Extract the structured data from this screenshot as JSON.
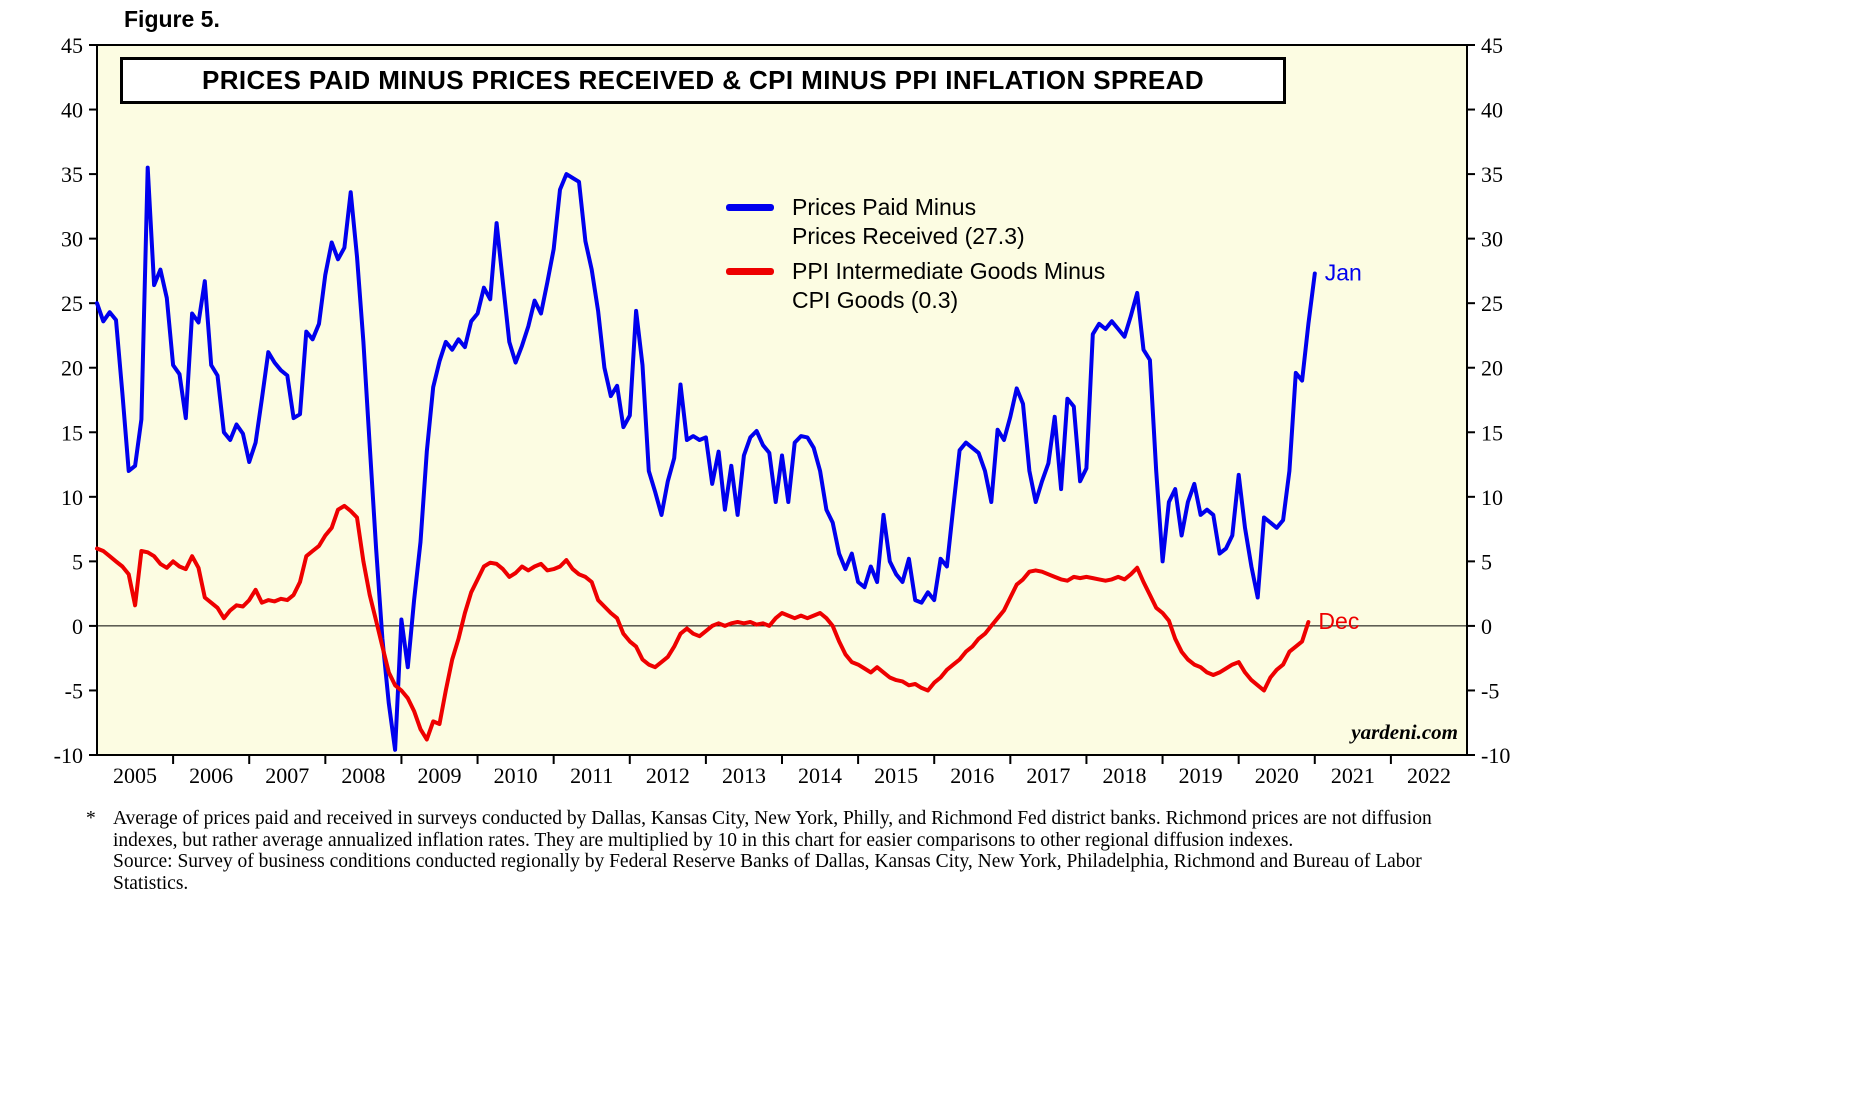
{
  "figure_label": "Figure 5.",
  "header": {
    "title": "PRICES PAID MINUS PRICES RECEIVED & CPI MINUS PPI INFLATION SPREAD"
  },
  "legend": {
    "items": [
      {
        "label_line1": "Prices Paid Minus",
        "label_line2": "Prices Received (27.3)",
        "color": "#0000EE"
      },
      {
        "label_line1": "PPI Intermediate Goods Minus",
        "label_line2": "CPI Goods (0.3)",
        "color": "#EE0000"
      }
    ]
  },
  "watermark": "yardeni.com",
  "footnote": {
    "marker": "*",
    "text": "Average of prices paid and received in surveys conducted by Dallas, Kansas City, New York, Philly, and Richmond Fed district banks. Richmond prices are not diffusion indexes, but rather average annualized inflation rates. They are multiplied by 10 in this chart for easier comparisons to other regional diffusion indexes.",
    "source": "Source: Survey of business conditions conducted regionally by Federal Reserve Banks of Dallas, Kansas City, New York, Philadelphia, Richmond and Bureau of Labor Statistics."
  },
  "chart_data": {
    "type": "line",
    "title": "PRICES PAID MINUS PRICES RECEIVED & CPI MINUS PPI INFLATION SPREAD",
    "xlabel": "",
    "ylabel": "",
    "ylim": [
      -10,
      45
    ],
    "ytick_step": 5,
    "xlim": [
      2005,
      2023
    ],
    "x_unit": "year",
    "x_tick_labels": [
      "2005",
      "2006",
      "2007",
      "2008",
      "2009",
      "2010",
      "2011",
      "2012",
      "2013",
      "2014",
      "2015",
      "2016",
      "2017",
      "2018",
      "2019",
      "2020",
      "2021",
      "2022"
    ],
    "grid": false,
    "zero_line": true,
    "legend_position": "inside-top-center-right",
    "plot_bg": "#FCFCE2",
    "series": [
      {
        "id": "prices-paid-minus-received",
        "name": "Prices Paid Minus Prices Received",
        "color": "#0000EE",
        "x_start": 2005.0,
        "interval": "monthly",
        "end_label": "Jan",
        "last_value": 27.3,
        "values": [
          25.0,
          23.6,
          24.3,
          23.7,
          18.0,
          12.0,
          12.4,
          16.0,
          35.5,
          26.4,
          27.6,
          25.4,
          20.2,
          19.5,
          16.1,
          24.2,
          23.5,
          26.7,
          20.2,
          19.4,
          15.0,
          14.4,
          15.6,
          14.9,
          12.7,
          14.2,
          17.6,
          21.2,
          20.4,
          19.8,
          19.4,
          16.1,
          16.4,
          22.8,
          22.2,
          23.4,
          27.2,
          29.7,
          28.4,
          29.3,
          33.6,
          28.6,
          22.0,
          14.0,
          6.0,
          -1.0,
          -6.0,
          -9.6,
          0.5,
          -3.2,
          2.0,
          6.5,
          13.5,
          18.5,
          20.5,
          22.0,
          21.4,
          22.2,
          21.6,
          23.6,
          24.2,
          26.2,
          25.3,
          31.2,
          26.6,
          22.0,
          20.4,
          21.7,
          23.2,
          25.2,
          24.2,
          26.6,
          29.2,
          33.8,
          35.0,
          34.7,
          34.4,
          29.8,
          27.6,
          24.4,
          20.0,
          17.8,
          18.6,
          15.4,
          16.3,
          24.4,
          20.2,
          12.0,
          10.4,
          8.6,
          11.2,
          13.0,
          18.7,
          14.4,
          14.7,
          14.4,
          14.6,
          11.0,
          13.5,
          9.0,
          12.4,
          8.6,
          13.2,
          14.6,
          15.1,
          14.0,
          13.4,
          9.6,
          13.2,
          9.6,
          14.2,
          14.7,
          14.6,
          13.8,
          12.0,
          9.0,
          8.0,
          5.6,
          4.4,
          5.6,
          3.4,
          3.0,
          4.6,
          3.4,
          8.6,
          5.0,
          4.0,
          3.4,
          5.2,
          2.0,
          1.8,
          2.6,
          2.0,
          5.2,
          4.6,
          9.2,
          13.6,
          14.2,
          13.8,
          13.4,
          12.0,
          9.6,
          15.2,
          14.4,
          16.2,
          18.4,
          17.2,
          12.0,
          9.6,
          11.2,
          12.6,
          16.2,
          10.6,
          17.6,
          17.0,
          11.2,
          12.2,
          22.6,
          23.4,
          23.0,
          23.6,
          23.0,
          22.4,
          24.0,
          25.8,
          21.4,
          20.6,
          12.0,
          5.0,
          9.6,
          10.6,
          7.0,
          9.6,
          11.0,
          8.6,
          9.0,
          8.6,
          5.6,
          6.0,
          7.0,
          11.7,
          7.6,
          4.6,
          2.2,
          8.4,
          8.0,
          7.6,
          8.2,
          12.0,
          19.6,
          19.0,
          23.4,
          27.3
        ]
      },
      {
        "id": "ppi-intermediate-minus-cpi",
        "name": "PPI Intermediate Goods Minus CPI Goods",
        "color": "#EE0000",
        "x_start": 2005.0,
        "interval": "monthly",
        "end_label": "Dec",
        "last_value": 0.3,
        "values": [
          6.0,
          5.8,
          5.4,
          5.0,
          4.6,
          4.0,
          1.6,
          5.8,
          5.7,
          5.4,
          4.8,
          4.5,
          5.0,
          4.6,
          4.4,
          5.4,
          4.5,
          2.2,
          1.8,
          1.4,
          0.6,
          1.2,
          1.6,
          1.5,
          2.0,
          2.8,
          1.8,
          2.0,
          1.9,
          2.1,
          2.0,
          2.4,
          3.4,
          5.4,
          5.8,
          6.2,
          7.0,
          7.6,
          9.0,
          9.3,
          8.9,
          8.4,
          5.0,
          2.4,
          0.4,
          -1.6,
          -3.6,
          -4.6,
          -5.0,
          -5.6,
          -6.6,
          -8.0,
          -8.8,
          -7.4,
          -7.6,
          -5.0,
          -2.6,
          -1.0,
          1.0,
          2.6,
          3.6,
          4.6,
          4.9,
          4.8,
          4.4,
          3.8,
          4.1,
          4.6,
          4.3,
          4.6,
          4.8,
          4.3,
          4.4,
          4.6,
          5.1,
          4.4,
          4.0,
          3.8,
          3.4,
          2.0,
          1.5,
          1.0,
          0.6,
          -0.6,
          -1.2,
          -1.6,
          -2.6,
          -3.0,
          -3.2,
          -2.8,
          -2.4,
          -1.6,
          -0.6,
          -0.2,
          -0.6,
          -0.8,
          -0.4,
          0.0,
          0.2,
          0.0,
          0.2,
          0.3,
          0.2,
          0.3,
          0.1,
          0.2,
          0.0,
          0.6,
          1.0,
          0.8,
          0.6,
          0.8,
          0.6,
          0.8,
          1.0,
          0.6,
          0.0,
          -1.2,
          -2.2,
          -2.8,
          -3.0,
          -3.3,
          -3.6,
          -3.2,
          -3.6,
          -4.0,
          -4.2,
          -4.3,
          -4.6,
          -4.5,
          -4.8,
          -5.0,
          -4.4,
          -4.0,
          -3.4,
          -3.0,
          -2.6,
          -2.0,
          -1.6,
          -1.0,
          -0.6,
          0.0,
          0.6,
          1.2,
          2.2,
          3.2,
          3.6,
          4.2,
          4.3,
          4.2,
          4.0,
          3.8,
          3.6,
          3.5,
          3.8,
          3.7,
          3.8,
          3.7,
          3.6,
          3.5,
          3.6,
          3.8,
          3.6,
          4.0,
          4.5,
          3.4,
          2.4,
          1.4,
          1.0,
          0.4,
          -1.0,
          -2.0,
          -2.6,
          -3.0,
          -3.2,
          -3.6,
          -3.8,
          -3.6,
          -3.3,
          -3.0,
          -2.8,
          -3.6,
          -4.2,
          -4.6,
          -5.0,
          -4.0,
          -3.4,
          -3.0,
          -2.0,
          -1.6,
          -1.2,
          0.3
        ]
      }
    ]
  }
}
